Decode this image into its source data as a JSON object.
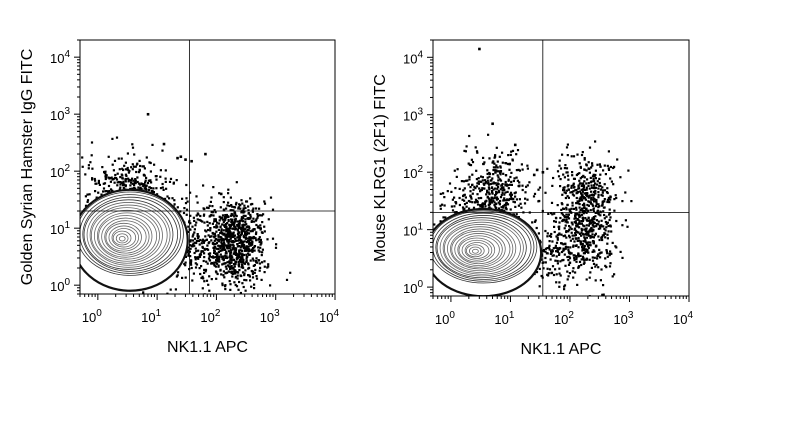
{
  "chart_data": [
    {
      "type": "scatter",
      "subtype": "flow-cytometry-contour-dot-plot",
      "xlabel": "NK1.1 APC",
      "ylabel": "Golden Syrian Hamster IgG FITC",
      "xscale": "log",
      "yscale": "log",
      "xlim": [
        0.5,
        10000
      ],
      "ylim": [
        0.7,
        20000
      ],
      "x_ticks": [
        {
          "base": "10",
          "exp": "0",
          "value": 1
        },
        {
          "base": "10",
          "exp": "1",
          "value": 10
        },
        {
          "base": "10",
          "exp": "2",
          "value": 100
        },
        {
          "base": "10",
          "exp": "3",
          "value": 1000
        },
        {
          "base": "10",
          "exp": "4",
          "value": 10000
        }
      ],
      "y_ticks": [
        {
          "base": "10",
          "exp": "0",
          "value": 1
        },
        {
          "base": "10",
          "exp": "1",
          "value": 10
        },
        {
          "base": "10",
          "exp": "2",
          "value": 100
        },
        {
          "base": "10",
          "exp": "3",
          "value": 1000
        },
        {
          "base": "10",
          "exp": "4",
          "value": 10000
        }
      ],
      "quadrant_gate": {
        "x": 35,
        "y": 20
      },
      "grid": false,
      "contour_population": {
        "x_center": 3.5,
        "y_center": 8,
        "x_spread_decades": 0.45,
        "y_spread_decades": 0.35
      },
      "dot_clusters": [
        {
          "x_center": 3.5,
          "y_center": 30,
          "x_spread": 0.35,
          "y_spread": 0.25,
          "n": 480
        },
        {
          "x_center": 3,
          "y_center": 90,
          "x_spread": 0.35,
          "y_spread": 0.3,
          "n": 120
        },
        {
          "x_center": 220,
          "y_center": 5,
          "x_spread": 0.25,
          "y_spread": 0.35,
          "n": 700
        },
        {
          "x_center": 45,
          "y_center": 5,
          "x_spread": 0.3,
          "y_spread": 0.35,
          "n": 260
        },
        {
          "x_center": 200,
          "y_center": 14,
          "x_spread": 0.25,
          "y_spread": 0.2,
          "n": 90
        }
      ],
      "notable_points": [
        {
          "x": 7,
          "y": 1000
        },
        {
          "x": 25,
          "y": 180
        },
        {
          "x": 30,
          "y": 160
        },
        {
          "x": 38,
          "y": 150
        },
        {
          "x": 22,
          "y": 170
        },
        {
          "x": 65,
          "y": 200
        },
        {
          "x": 120,
          "y": 40
        },
        {
          "x": 13,
          "y": 300
        }
      ]
    },
    {
      "type": "scatter",
      "subtype": "flow-cytometry-contour-dot-plot",
      "xlabel": "NK1.1 APC",
      "ylabel": "Mouse KLRG1 (2F1) FITC",
      "xscale": "log",
      "yscale": "log",
      "xlim": [
        0.5,
        10000
      ],
      "ylim": [
        0.7,
        20000
      ],
      "x_ticks": [
        {
          "base": "10",
          "exp": "0",
          "value": 1
        },
        {
          "base": "10",
          "exp": "1",
          "value": 10
        },
        {
          "base": "10",
          "exp": "2",
          "value": 100
        },
        {
          "base": "10",
          "exp": "3",
          "value": 1000
        },
        {
          "base": "10",
          "exp": "4",
          "value": 10000
        }
      ],
      "y_ticks": [
        {
          "base": "10",
          "exp": "0",
          "value": 1
        },
        {
          "base": "10",
          "exp": "1",
          "value": 10
        },
        {
          "base": "10",
          "exp": "2",
          "value": 100
        },
        {
          "base": "10",
          "exp": "3",
          "value": 1000
        },
        {
          "base": "10",
          "exp": "4",
          "value": 10000
        }
      ],
      "quadrant_gate": {
        "x": 35,
        "y": 20
      },
      "grid": false,
      "contour_population": {
        "x_center": 3.5,
        "y_center": 5,
        "x_spread_decades": 0.45,
        "y_spread_decades": 0.3
      },
      "dot_clusters": [
        {
          "x_center": 4,
          "y_center": 25,
          "x_spread": 0.35,
          "y_spread": 0.3,
          "n": 420
        },
        {
          "x_center": 5,
          "y_center": 80,
          "x_spread": 0.3,
          "y_spread": 0.3,
          "n": 150
        },
        {
          "x_center": 200,
          "y_center": 12,
          "x_spread": 0.25,
          "y_spread": 0.45,
          "n": 520
        },
        {
          "x_center": 50,
          "y_center": 4,
          "x_spread": 0.3,
          "y_spread": 0.35,
          "n": 200
        },
        {
          "x_center": 150,
          "y_center": 60,
          "x_spread": 0.25,
          "y_spread": 0.3,
          "n": 160
        }
      ],
      "notable_points": [
        {
          "x": 3,
          "y": 14000
        },
        {
          "x": 5,
          "y": 700
        },
        {
          "x": 12,
          "y": 300
        },
        {
          "x": 25,
          "y": 90
        },
        {
          "x": 35,
          "y": 100
        },
        {
          "x": 28,
          "y": 110
        }
      ]
    }
  ]
}
